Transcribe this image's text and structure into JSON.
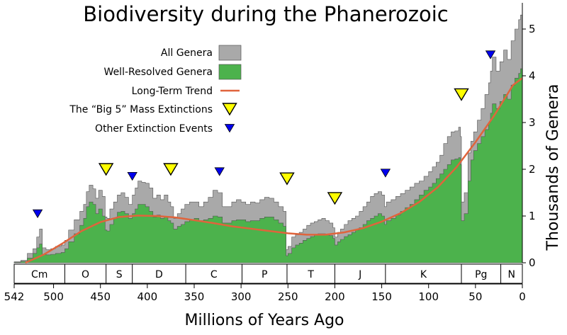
{
  "chart_data": {
    "type": "area",
    "title": "Biodiversity during the Phanerozoic",
    "xlabel": "Millions of Years Ago",
    "ylabel": "Thousands of Genera",
    "xlim": [
      542,
      0
    ],
    "ylim": [
      0,
      5.5
    ],
    "x_ticks": [
      542,
      500,
      450,
      400,
      350,
      300,
      250,
      200,
      150,
      100,
      50,
      0
    ],
    "y_ticks": [
      0,
      1,
      2,
      3,
      4,
      5
    ],
    "series": [
      {
        "name": "All Genera",
        "color": "#a9a9a9",
        "x": [
          542,
          535,
          528,
          522,
          518,
          515,
          512,
          508,
          503,
          498,
          492,
          488,
          484,
          478,
          472,
          468,
          465,
          462,
          458,
          455,
          452,
          448,
          445,
          443,
          440,
          436,
          432,
          428,
          424,
          420,
          416,
          413,
          410,
          406,
          402,
          398,
          394,
          390,
          386,
          382,
          378,
          375,
          372,
          368,
          364,
          360,
          355,
          350,
          345,
          340,
          335,
          330,
          325,
          320,
          315,
          310,
          305,
          300,
          295,
          290,
          285,
          280,
          275,
          270,
          265,
          260,
          255,
          252,
          250,
          246,
          242,
          238,
          234,
          230,
          226,
          222,
          218,
          214,
          210,
          206,
          202,
          200,
          197,
          194,
          190,
          186,
          182,
          178,
          174,
          170,
          166,
          162,
          158,
          154,
          150,
          147,
          145,
          140,
          135,
          130,
          125,
          120,
          115,
          110,
          105,
          100,
          96,
          92,
          88,
          84,
          80,
          76,
          72,
          68,
          66,
          65,
          62,
          58,
          55,
          52,
          48,
          44,
          40,
          36,
          34,
          32,
          28,
          24,
          20,
          16,
          12,
          8,
          4,
          2,
          0
        ],
        "values": [
          0.02,
          0.05,
          0.2,
          0.3,
          0.55,
          0.72,
          0.32,
          0.28,
          0.3,
          0.35,
          0.38,
          0.48,
          0.7,
          0.92,
          1.1,
          1.25,
          1.52,
          1.66,
          1.58,
          1.38,
          1.55,
          1.42,
          0.98,
          0.95,
          1.15,
          1.3,
          1.45,
          1.5,
          1.4,
          1.25,
          1.45,
          1.6,
          1.75,
          1.72,
          1.7,
          1.6,
          1.38,
          1.45,
          1.35,
          1.45,
          1.3,
          1.2,
          0.95,
          1.05,
          1.15,
          1.25,
          1.3,
          1.3,
          1.2,
          1.3,
          1.4,
          1.55,
          1.5,
          1.2,
          1.2,
          1.3,
          1.35,
          1.3,
          1.25,
          1.3,
          1.28,
          1.35,
          1.4,
          1.38,
          1.3,
          1.2,
          1.1,
          0.28,
          0.35,
          0.55,
          0.6,
          0.65,
          0.72,
          0.8,
          0.85,
          0.88,
          0.92,
          0.95,
          0.9,
          0.85,
          0.75,
          0.55,
          0.65,
          0.72,
          0.82,
          0.9,
          0.95,
          1.0,
          1.1,
          1.2,
          1.3,
          1.42,
          1.48,
          1.52,
          1.45,
          1.2,
          1.3,
          1.35,
          1.42,
          1.48,
          1.55,
          1.62,
          1.7,
          1.75,
          1.85,
          1.95,
          2.05,
          2.15,
          2.3,
          2.55,
          2.7,
          2.8,
          2.82,
          2.9,
          2.7,
          1.3,
          1.5,
          2.35,
          2.6,
          2.8,
          3.05,
          3.3,
          3.6,
          3.85,
          4.1,
          4.4,
          4.1,
          4.3,
          4.55,
          4.35,
          4.75,
          5.0,
          5.2,
          5.3,
          5.5
        ]
      },
      {
        "name": "Well-Resolved Genera",
        "color": "#4cb24c",
        "x": [
          542,
          535,
          528,
          522,
          518,
          515,
          512,
          508,
          503,
          498,
          492,
          488,
          484,
          478,
          472,
          468,
          465,
          462,
          458,
          455,
          452,
          448,
          445,
          443,
          440,
          436,
          432,
          428,
          424,
          420,
          416,
          413,
          410,
          406,
          402,
          398,
          394,
          390,
          386,
          382,
          378,
          375,
          372,
          368,
          364,
          360,
          355,
          350,
          345,
          340,
          335,
          330,
          325,
          320,
          315,
          310,
          305,
          300,
          295,
          290,
          285,
          280,
          275,
          270,
          265,
          260,
          255,
          252,
          250,
          246,
          242,
          238,
          234,
          230,
          226,
          222,
          218,
          214,
          210,
          206,
          202,
          200,
          197,
          194,
          190,
          186,
          182,
          178,
          174,
          170,
          166,
          162,
          158,
          154,
          150,
          147,
          145,
          140,
          135,
          130,
          125,
          120,
          115,
          110,
          105,
          100,
          96,
          92,
          88,
          84,
          80,
          76,
          72,
          68,
          66,
          65,
          62,
          58,
          55,
          52,
          48,
          44,
          40,
          36,
          34,
          32,
          28,
          24,
          20,
          16,
          12,
          8,
          4,
          2,
          0
        ],
        "values": [
          0.01,
          0.03,
          0.1,
          0.2,
          0.32,
          0.4,
          0.18,
          0.17,
          0.18,
          0.2,
          0.22,
          0.3,
          0.45,
          0.62,
          0.8,
          0.95,
          1.2,
          1.3,
          1.25,
          1.05,
          1.15,
          1.0,
          0.7,
          0.68,
          0.82,
          0.95,
          1.08,
          1.1,
          1.05,
          0.95,
          1.05,
          1.15,
          1.25,
          1.25,
          1.2,
          1.1,
          0.98,
          1.02,
          0.95,
          0.98,
          0.9,
          0.85,
          0.72,
          0.78,
          0.82,
          0.88,
          0.92,
          0.95,
          0.9,
          0.92,
          0.95,
          1.0,
          0.98,
          0.85,
          0.85,
          0.9,
          0.92,
          0.92,
          0.88,
          0.9,
          0.9,
          0.95,
          0.98,
          0.98,
          0.92,
          0.85,
          0.78,
          0.15,
          0.2,
          0.32,
          0.38,
          0.42,
          0.48,
          0.52,
          0.56,
          0.6,
          0.62,
          0.62,
          0.6,
          0.58,
          0.52,
          0.38,
          0.45,
          0.5,
          0.56,
          0.6,
          0.65,
          0.7,
          0.75,
          0.82,
          0.9,
          0.95,
          1.0,
          1.05,
          1.0,
          0.82,
          0.9,
          0.95,
          1.02,
          1.1,
          1.18,
          1.25,
          1.35,
          1.45,
          1.55,
          1.62,
          1.7,
          1.8,
          1.9,
          2.0,
          2.1,
          2.2,
          2.22,
          2.25,
          2.1,
          0.9,
          1.05,
          1.75,
          2.2,
          2.4,
          2.55,
          2.7,
          2.85,
          3.0,
          3.2,
          3.4,
          3.3,
          3.45,
          3.6,
          3.5,
          3.8,
          3.95,
          4.05,
          4.15,
          4.2
        ]
      },
      {
        "name": "Long-Term Trend",
        "color": "#e0643c",
        "x": [
          530,
          510,
          490,
          470,
          450,
          430,
          410,
          390,
          370,
          350,
          330,
          310,
          290,
          270,
          250,
          230,
          210,
          190,
          170,
          150,
          130,
          110,
          90,
          70,
          50,
          30,
          10,
          0
        ],
        "values": [
          0.0,
          0.18,
          0.42,
          0.68,
          0.87,
          0.98,
          1.01,
          1.0,
          0.97,
          0.91,
          0.85,
          0.78,
          0.73,
          0.68,
          0.63,
          0.6,
          0.6,
          0.65,
          0.74,
          0.88,
          1.06,
          1.3,
          1.62,
          2.05,
          2.58,
          3.15,
          3.8,
          3.95
        ]
      }
    ],
    "big5_extinctions": [
      {
        "x": 444,
        "y": 2.0
      },
      {
        "x": 375,
        "y": 2.0
      },
      {
        "x": 251,
        "y": 1.8
      },
      {
        "x": 200,
        "y": 1.38
      },
      {
        "x": 65,
        "y": 3.6
      }
    ],
    "other_extinctions": [
      {
        "x": 517,
        "y": 1.05
      },
      {
        "x": 416,
        "y": 1.85
      },
      {
        "x": 323,
        "y": 1.95
      },
      {
        "x": 146,
        "y": 1.92
      },
      {
        "x": 34,
        "y": 4.45
      }
    ],
    "periods": [
      {
        "label": "Cm",
        "start": 542,
        "end": 488
      },
      {
        "label": "O",
        "start": 488,
        "end": 444
      },
      {
        "label": "S",
        "start": 444,
        "end": 416
      },
      {
        "label": "D",
        "start": 416,
        "end": 359
      },
      {
        "label": "C",
        "start": 359,
        "end": 299
      },
      {
        "label": "P",
        "start": 299,
        "end": 251
      },
      {
        "label": "T",
        "start": 251,
        "end": 200
      },
      {
        "label": "J",
        "start": 200,
        "end": 146
      },
      {
        "label": "K",
        "start": 146,
        "end": 65
      },
      {
        "label": "Pg",
        "start": 65,
        "end": 23
      },
      {
        "label": "N",
        "start": 23,
        "end": 0
      }
    ],
    "legend": [
      {
        "label": "All Genera",
        "marker": "gray-box"
      },
      {
        "label": "Well-Resolved Genera",
        "marker": "green-box"
      },
      {
        "label": "Long-Term Trend",
        "marker": "trend-line"
      },
      {
        "label": "The “Big 5” Mass Extinctions",
        "marker": "yellow-triangle"
      },
      {
        "label": "Other Extinction Events",
        "marker": "blue-triangle"
      }
    ],
    "legend_position": "top-left",
    "grid": false
  }
}
